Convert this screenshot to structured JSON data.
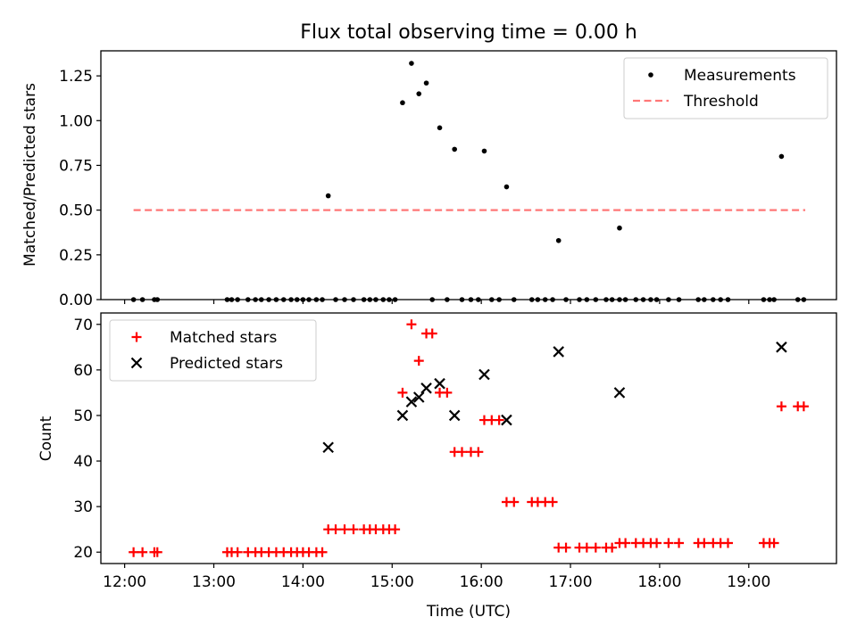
{
  "chart_data": [
    {
      "type": "scatter",
      "title": "Flux total observing time = 0.00 h",
      "xlabel": "",
      "ylabel": "Matched/Predicted stars",
      "xlim": [
        "11:44",
        "19:59"
      ],
      "ylim": [
        0,
        1.39
      ],
      "yticks": [
        0.0,
        0.25,
        0.5,
        0.75,
        1.0,
        1.25
      ],
      "ytick_labels": [
        "0.00",
        "0.25",
        "0.50",
        "0.75",
        "1.00",
        "1.25"
      ],
      "xticks": [
        "12:00",
        "13:00",
        "14:00",
        "15:00",
        "16:00",
        "17:00",
        "18:00",
        "19:00"
      ],
      "grid": false,
      "legend_position": "upper right",
      "series": [
        {
          "name": "Measurements",
          "marker": "dot",
          "color": "#000000",
          "points": [
            [
              "12:06",
              0
            ],
            [
              "12:12",
              0
            ],
            [
              "12:20",
              0
            ],
            [
              "12:22",
              0
            ],
            [
              "13:09",
              0
            ],
            [
              "13:12",
              0
            ],
            [
              "13:16",
              0
            ],
            [
              "13:23",
              0
            ],
            [
              "13:28",
              0
            ],
            [
              "13:32",
              0
            ],
            [
              "13:37",
              0
            ],
            [
              "13:42",
              0
            ],
            [
              "13:47",
              0
            ],
            [
              "13:52",
              0
            ],
            [
              "13:56",
              0
            ],
            [
              "14:00",
              0
            ],
            [
              "14:04",
              0
            ],
            [
              "14:09",
              0
            ],
            [
              "14:13",
              0
            ],
            [
              "14:17",
              0.58
            ],
            [
              "14:22",
              0
            ],
            [
              "14:28",
              0
            ],
            [
              "14:34",
              0
            ],
            [
              "14:41",
              0
            ],
            [
              "14:45",
              0
            ],
            [
              "14:49",
              0
            ],
            [
              "14:54",
              0
            ],
            [
              "14:58",
              0
            ],
            [
              "15:02",
              0
            ],
            [
              "15:07",
              1.1
            ],
            [
              "15:13",
              1.32
            ],
            [
              "15:18",
              1.15
            ],
            [
              "15:23",
              1.21
            ],
            [
              "15:27",
              0
            ],
            [
              "15:32",
              0.96
            ],
            [
              "15:37",
              0
            ],
            [
              "15:42",
              0.84
            ],
            [
              "15:47",
              0
            ],
            [
              "15:53",
              0
            ],
            [
              "15:58",
              0
            ],
            [
              "16:02",
              0.83
            ],
            [
              "16:07",
              0
            ],
            [
              "16:12",
              0
            ],
            [
              "16:17",
              0.63
            ],
            [
              "16:22",
              0
            ],
            [
              "16:34",
              0
            ],
            [
              "16:38",
              0
            ],
            [
              "16:43",
              0
            ],
            [
              "16:48",
              0
            ],
            [
              "16:52",
              0.33
            ],
            [
              "16:57",
              0
            ],
            [
              "17:06",
              0
            ],
            [
              "17:11",
              0
            ],
            [
              "17:17",
              0
            ],
            [
              "17:24",
              0
            ],
            [
              "17:28",
              0
            ],
            [
              "17:33",
              0
            ],
            [
              "17:33",
              0.4
            ],
            [
              "17:37",
              0
            ],
            [
              "17:44",
              0
            ],
            [
              "17:49",
              0
            ],
            [
              "17:54",
              0
            ],
            [
              "17:58",
              0
            ],
            [
              "18:06",
              0
            ],
            [
              "18:13",
              0
            ],
            [
              "18:26",
              0
            ],
            [
              "18:30",
              0
            ],
            [
              "18:36",
              0
            ],
            [
              "18:41",
              0
            ],
            [
              "18:46",
              0
            ],
            [
              "19:10",
              0
            ],
            [
              "19:14",
              0
            ],
            [
              "19:17",
              0
            ],
            [
              "19:22",
              0.8
            ],
            [
              "19:33",
              0
            ],
            [
              "19:37",
              0
            ]
          ]
        },
        {
          "name": "Threshold",
          "line": "dashed",
          "color": "#ff7777",
          "points": [
            [
              "12:06",
              0.5
            ],
            [
              "19:38",
              0.5
            ]
          ]
        }
      ]
    },
    {
      "type": "scatter",
      "title": "",
      "xlabel": "Time (UTC)",
      "ylabel": "Count",
      "xlim": [
        "11:44",
        "19:59"
      ],
      "ylim": [
        17.5,
        72.5
      ],
      "yticks": [
        20,
        30,
        40,
        50,
        60,
        70
      ],
      "ytick_labels": [
        "20",
        "30",
        "40",
        "50",
        "60",
        "70"
      ],
      "xticks": [
        "12:00",
        "13:00",
        "14:00",
        "15:00",
        "16:00",
        "17:00",
        "18:00",
        "19:00"
      ],
      "grid": false,
      "legend_position": "upper left",
      "series": [
        {
          "name": "Matched stars",
          "marker": "plus",
          "color": "#ff0000",
          "points": [
            [
              "12:06",
              20
            ],
            [
              "12:12",
              20
            ],
            [
              "12:20",
              20
            ],
            [
              "12:22",
              20
            ],
            [
              "13:09",
              20
            ],
            [
              "13:12",
              20
            ],
            [
              "13:16",
              20
            ],
            [
              "13:23",
              20
            ],
            [
              "13:28",
              20
            ],
            [
              "13:32",
              20
            ],
            [
              "13:37",
              20
            ],
            [
              "13:42",
              20
            ],
            [
              "13:47",
              20
            ],
            [
              "13:52",
              20
            ],
            [
              "13:56",
              20
            ],
            [
              "14:00",
              20
            ],
            [
              "14:04",
              20
            ],
            [
              "14:09",
              20
            ],
            [
              "14:13",
              20
            ],
            [
              "14:17",
              25
            ],
            [
              "14:22",
              25
            ],
            [
              "14:28",
              25
            ],
            [
              "14:34",
              25
            ],
            [
              "14:41",
              25
            ],
            [
              "14:45",
              25
            ],
            [
              "14:49",
              25
            ],
            [
              "14:54",
              25
            ],
            [
              "14:58",
              25
            ],
            [
              "15:02",
              25
            ],
            [
              "15:07",
              55
            ],
            [
              "15:13",
              70
            ],
            [
              "15:18",
              62
            ],
            [
              "15:23",
              68
            ],
            [
              "15:27",
              68
            ],
            [
              "15:32",
              55
            ],
            [
              "15:37",
              55
            ],
            [
              "15:42",
              42
            ],
            [
              "15:47",
              42
            ],
            [
              "15:53",
              42
            ],
            [
              "15:58",
              42
            ],
            [
              "16:02",
              49
            ],
            [
              "16:07",
              49
            ],
            [
              "16:12",
              49
            ],
            [
              "16:17",
              31
            ],
            [
              "16:22",
              31
            ],
            [
              "16:34",
              31
            ],
            [
              "16:38",
              31
            ],
            [
              "16:43",
              31
            ],
            [
              "16:48",
              31
            ],
            [
              "16:52",
              21
            ],
            [
              "16:57",
              21
            ],
            [
              "17:06",
              21
            ],
            [
              "17:11",
              21
            ],
            [
              "17:17",
              21
            ],
            [
              "17:24",
              21
            ],
            [
              "17:28",
              21
            ],
            [
              "17:33",
              22
            ],
            [
              "17:37",
              22
            ],
            [
              "17:44",
              22
            ],
            [
              "17:49",
              22
            ],
            [
              "17:54",
              22
            ],
            [
              "17:58",
              22
            ],
            [
              "18:06",
              22
            ],
            [
              "18:13",
              22
            ],
            [
              "18:26",
              22
            ],
            [
              "18:30",
              22
            ],
            [
              "18:36",
              22
            ],
            [
              "18:41",
              22
            ],
            [
              "18:46",
              22
            ],
            [
              "19:10",
              22
            ],
            [
              "19:14",
              22
            ],
            [
              "19:17",
              22
            ],
            [
              "19:22",
              52
            ],
            [
              "19:33",
              52
            ],
            [
              "19:37",
              52
            ]
          ]
        },
        {
          "name": "Predicted stars",
          "marker": "x",
          "color": "#000000",
          "points": [
            [
              "14:17",
              43
            ],
            [
              "15:07",
              50
            ],
            [
              "15:13",
              53
            ],
            [
              "15:18",
              54
            ],
            [
              "15:23",
              56
            ],
            [
              "15:32",
              57
            ],
            [
              "15:42",
              50
            ],
            [
              "16:02",
              59
            ],
            [
              "16:17",
              49
            ],
            [
              "16:52",
              64
            ],
            [
              "17:33",
              55
            ],
            [
              "19:22",
              65
            ]
          ]
        }
      ]
    }
  ]
}
